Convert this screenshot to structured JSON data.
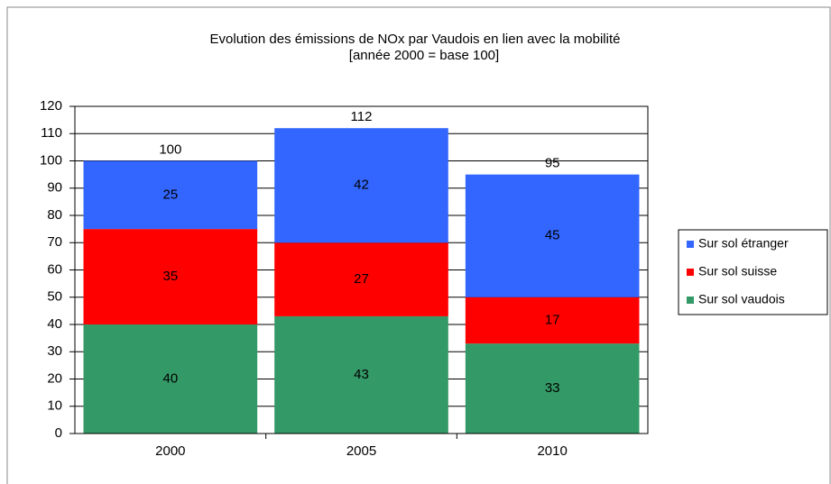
{
  "chart_data": {
    "type": "stacked_bar",
    "title": "Evolution  des émissions de NOx par Vaudois en lien avec la mobilité",
    "subtitle": "[année 2000  = base 100]",
    "categories": [
      "2000",
      "2005",
      "2010"
    ],
    "series": [
      {
        "name": "Sur sol vaudois",
        "color": "#339966",
        "values": [
          40,
          43,
          33
        ]
      },
      {
        "name": "Sur sol suisse",
        "color": "#ff0000",
        "values": [
          35,
          27,
          17
        ]
      },
      {
        "name": "Sur sol étranger",
        "color": "#3366ff",
        "values": [
          25,
          42,
          45
        ]
      }
    ],
    "totals": [
      100,
      112,
      95
    ],
    "ylim": [
      0,
      120
    ],
    "yticks": [
      0,
      10,
      20,
      30,
      40,
      50,
      60,
      70,
      80,
      90,
      100,
      110,
      120
    ],
    "grid": true,
    "legend": "right"
  }
}
